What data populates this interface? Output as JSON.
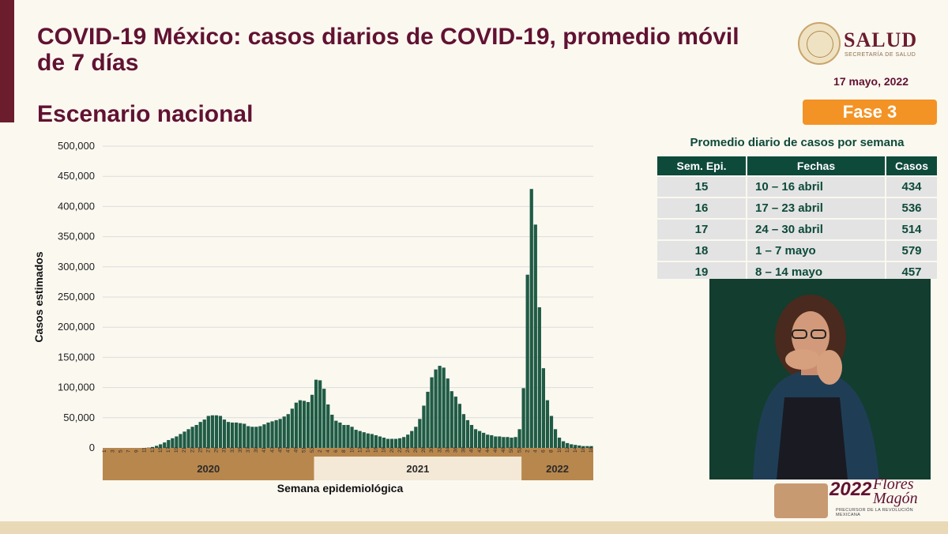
{
  "header": {
    "title": "COVID-19 México: casos diarios de COVID-19, promedio móvil de 7 días",
    "subtitle": "Escenario nacional",
    "logo_text": "SALUD",
    "logo_subtext": "SECRETARÍA DE SALUD",
    "date": "17 mayo, 2022",
    "phase": "Fase 3"
  },
  "table": {
    "title": "Promedio diario de casos por semana",
    "columns": [
      "Sem. Epi.",
      "Fechas",
      "Casos"
    ],
    "rows": [
      [
        "15",
        "10 – 16 abril",
        "434"
      ],
      [
        "16",
        "17 – 23 abril",
        "536"
      ],
      [
        "17",
        "24 – 30 abril",
        "514"
      ],
      [
        "18",
        "1 – 7 mayo",
        "579"
      ],
      [
        "19",
        "8 – 14 mayo",
        "457"
      ]
    ]
  },
  "footer": {
    "year": "2022",
    "name_line1": "Flores",
    "name_line2": "Magón",
    "caption": "PRECURSOR DE LA REVOLUCIÓN MEXICANA"
  },
  "colors": {
    "bar": "#1f5b45",
    "brand": "#611232",
    "accent": "#f39325",
    "table_header": "#0e4a3a",
    "year_band_dark": "#b8874d",
    "year_band_light": "#f3e9d6"
  },
  "chart_data": {
    "type": "bar",
    "title": "",
    "xlabel": "Semana epidemiológica",
    "ylabel": "Casos estimados",
    "ylim": [
      0,
      500000
    ],
    "yticks": [
      0,
      50000,
      100000,
      150000,
      200000,
      250000,
      300000,
      350000,
      400000,
      450000,
      500000
    ],
    "ytick_labels": [
      "0",
      "50,000",
      "100,000",
      "150,000",
      "200,000",
      "250,000",
      "300,000",
      "350,000",
      "400,000",
      "450,000",
      "500,000"
    ],
    "grid": true,
    "year_groups": [
      {
        "label": "2020",
        "weeks": 53
      },
      {
        "label": "2021",
        "weeks": 52
      },
      {
        "label": "2022",
        "weeks": 18
      }
    ],
    "week_labels": [
      "1",
      "3",
      "5",
      "7",
      "9",
      "11",
      "13",
      "15",
      "17",
      "19",
      "21",
      "23",
      "25",
      "27",
      "29",
      "31",
      "33",
      "35",
      "37",
      "39",
      "41",
      "43",
      "45",
      "47",
      "49",
      "51",
      "53",
      "2",
      "4",
      "6",
      "8",
      "10",
      "12",
      "14",
      "16",
      "18",
      "20",
      "22",
      "24",
      "26",
      "28",
      "30",
      "32",
      "34",
      "36",
      "38",
      "40",
      "42",
      "44",
      "46",
      "48",
      "50",
      "52",
      "2",
      "4",
      "6",
      "8",
      "10",
      "12",
      "14",
      "16",
      "18"
    ],
    "values": [
      0,
      0,
      0,
      0,
      0,
      0,
      0,
      0,
      0,
      0,
      0,
      500,
      1500,
      3500,
      6000,
      9000,
      13000,
      16000,
      19000,
      23000,
      27000,
      31000,
      35000,
      38000,
      43000,
      47000,
      53000,
      54000,
      54000,
      53000,
      47000,
      43000,
      42000,
      42000,
      41000,
      40000,
      36000,
      35000,
      35000,
      36000,
      39000,
      42000,
      44000,
      46000,
      48000,
      52000,
      56000,
      65000,
      75000,
      79000,
      78000,
      76000,
      88000,
      113000,
      112000,
      98000,
      72000,
      55000,
      45000,
      42000,
      38000,
      38000,
      35000,
      30000,
      28000,
      26000,
      24000,
      23000,
      21000,
      19000,
      17000,
      15000,
      15000,
      15000,
      16000,
      18000,
      22000,
      28000,
      35000,
      48000,
      70000,
      93000,
      117000,
      130000,
      136000,
      133000,
      115000,
      94000,
      85000,
      73000,
      56000,
      46000,
      38000,
      31000,
      28000,
      25000,
      22000,
      21000,
      19000,
      19000,
      18000,
      18000,
      17000,
      18000,
      31000,
      99000,
      287000,
      429000,
      370000,
      233000,
      132000,
      79000,
      53000,
      31000,
      17000,
      11000,
      8000,
      6000,
      5000,
      4000,
      3000,
      3000,
      3000
    ]
  }
}
